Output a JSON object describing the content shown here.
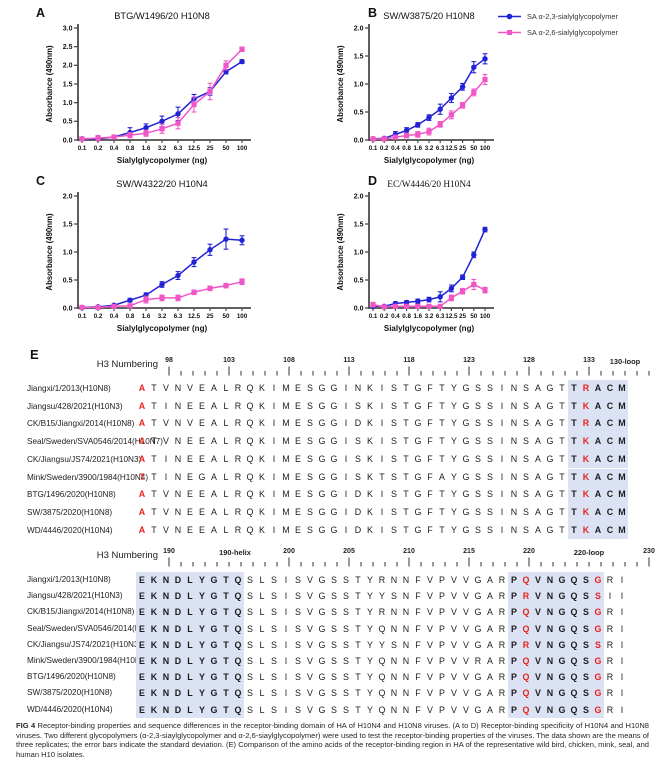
{
  "figure": {
    "colors": {
      "blue": "#2222d6",
      "pink": "#f156c6",
      "red": "#e8231d",
      "highlight": "#dbe2f4",
      "axis": "#4b4b4d",
      "text": "#111111"
    },
    "legend": {
      "items": [
        {
          "label": "SA α-2,3-sialylglycopolymer",
          "color": "#2222d6",
          "marker": "circle"
        },
        {
          "label": "SA α-2,6-sialylglycopolymer",
          "color": "#f156c6",
          "marker": "square"
        }
      ]
    }
  },
  "chart_data": [
    {
      "panel": "A",
      "type": "line",
      "title": "BTG/W1496/20 H10N8",
      "title_font": "sans",
      "xlabel": "Sialylglycopolymer (ng)",
      "ylabel": "Absorbance (490nm)",
      "categories": [
        "0.1",
        "0.2",
        "0.4",
        "0.8",
        "1.6",
        "3.2",
        "6.3",
        "12.5",
        "25",
        "50",
        "100"
      ],
      "ylim": [
        0,
        3.0
      ],
      "ytick_step": 0.5,
      "series": [
        {
          "name": "SA α-2,3-sialylglycopolymer",
          "values": [
            0.03,
            0.03,
            0.08,
            0.2,
            0.33,
            0.5,
            0.7,
            1.1,
            1.3,
            1.83,
            2.1
          ],
          "errors": [
            0.02,
            0.04,
            0.05,
            0.13,
            0.1,
            0.14,
            0.18,
            0.12,
            0.1,
            0.06,
            0.05
          ]
        },
        {
          "name": "SA α-2,6-sialylglycopolymer",
          "values": [
            0.03,
            0.05,
            0.08,
            0.13,
            0.18,
            0.3,
            0.45,
            0.95,
            1.3,
            2.0,
            2.43
          ],
          "errors": [
            0.02,
            0.07,
            0.05,
            0.07,
            0.08,
            0.12,
            0.15,
            0.2,
            0.22,
            0.12,
            0.06
          ]
        }
      ]
    },
    {
      "panel": "B",
      "type": "line",
      "title": "SW/W3875/20 H10N8",
      "title_font": "sans",
      "xlabel": "Sialylglycopolymer (ng)",
      "ylabel": "Absorbance (490nm)",
      "categories": [
        "0.1",
        "0.2",
        "0.4",
        "0.8",
        "1.6",
        "3.2",
        "6.3",
        "12.5",
        "25",
        "50",
        "100"
      ],
      "ylim": [
        0,
        2.0
      ],
      "ytick_step": 0.5,
      "series": [
        {
          "name": "SA α-2,3-sialylglycopolymer",
          "values": [
            0.02,
            0.03,
            0.1,
            0.17,
            0.27,
            0.4,
            0.55,
            0.75,
            0.95,
            1.3,
            1.45
          ],
          "errors": [
            0.01,
            0.02,
            0.05,
            0.05,
            0.04,
            0.05,
            0.09,
            0.08,
            0.06,
            0.1,
            0.09
          ]
        },
        {
          "name": "SA α-2,6-sialylglycopolymer",
          "values": [
            0.02,
            0.02,
            0.05,
            0.08,
            0.1,
            0.15,
            0.28,
            0.45,
            0.62,
            0.85,
            1.08
          ],
          "errors": [
            0.01,
            0.01,
            0.02,
            0.04,
            0.05,
            0.06,
            0.05,
            0.07,
            0.05,
            0.06,
            0.09
          ]
        }
      ]
    },
    {
      "panel": "C",
      "type": "line",
      "title": "SW/W4322/20 H10N4",
      "title_font": "sans",
      "xlabel": "Sialylglycopolymer (ng)",
      "ylabel": "Absorbance (490nm)",
      "categories": [
        "0.1",
        "0.2",
        "0.4",
        "0.8",
        "1.6",
        "3.2",
        "6.3",
        "12.5",
        "25",
        "50",
        "100"
      ],
      "ylim": [
        0,
        2.0
      ],
      "ytick_step": 0.5,
      "series": [
        {
          "name": "SA α-2,3-sialylglycopolymer",
          "values": [
            0.01,
            0.02,
            0.05,
            0.14,
            0.23,
            0.42,
            0.58,
            0.82,
            1.04,
            1.23,
            1.21
          ],
          "errors": [
            0.01,
            0.01,
            0.02,
            0.03,
            0.04,
            0.05,
            0.07,
            0.08,
            0.1,
            0.18,
            0.08
          ]
        },
        {
          "name": "SA α-2,6-sialylglycopolymer",
          "values": [
            0.01,
            0.01,
            0.03,
            0.04,
            0.15,
            0.18,
            0.18,
            0.28,
            0.35,
            0.4,
            0.47
          ],
          "errors": [
            0.01,
            0.01,
            0.01,
            0.02,
            0.06,
            0.05,
            0.05,
            0.04,
            0.04,
            0.04,
            0.05
          ]
        }
      ]
    },
    {
      "panel": "D",
      "type": "line",
      "title": "EC/W4446/20 H10N4",
      "title_font": "serif",
      "xlabel": "Sialylglycopolymer (ng)",
      "ylabel": "Absorbance (490nm)",
      "categories": [
        "0.1",
        "0.2",
        "0.4",
        "0.8",
        "1.6",
        "3.2",
        "6.3",
        "12.5",
        "25",
        "50",
        "100"
      ],
      "ylim": [
        0,
        2.0
      ],
      "ytick_step": 0.5,
      "series": [
        {
          "name": "SA α-2,3-sialylglycopolymer",
          "values": [
            0.03,
            0.03,
            0.08,
            0.1,
            0.12,
            0.15,
            0.2,
            0.35,
            0.55,
            0.95,
            1.4
          ],
          "errors": [
            0.02,
            0.02,
            0.03,
            0.03,
            0.04,
            0.04,
            0.09,
            0.06,
            0.04,
            0.05,
            0.04
          ]
        },
        {
          "name": "SA α-2,6-sialylglycopolymer",
          "values": [
            0.06,
            0.02,
            0.03,
            0.03,
            0.03,
            0.03,
            0.03,
            0.18,
            0.3,
            0.42,
            0.32
          ],
          "errors": [
            0.04,
            0.01,
            0.01,
            0.01,
            0.01,
            0.01,
            0.02,
            0.05,
            0.05,
            0.09,
            0.05
          ]
        }
      ]
    }
  ],
  "alignment": {
    "section_label": "E",
    "blocks": [
      {
        "header": "H3 Numbering",
        "ruler": {
          "labels": [
            [
              0,
              "98"
            ],
            [
              5,
              "103"
            ],
            [
              10,
              "108"
            ],
            [
              15,
              "113"
            ],
            [
              20,
              "118"
            ],
            [
              25,
              "123"
            ],
            [
              30,
              "128"
            ],
            [
              35,
              "133"
            ]
          ],
          "regions": [
            {
              "text": "130-loop",
              "center_col": 38
            }
          ]
        },
        "highlights": [
          [
            36,
            40
          ]
        ],
        "red_cols": [
          0,
          37
        ],
        "rows": [
          {
            "name": "Jiangxi/1/2013(H10N8)",
            "seq": "ATVNVEALRQKIMESGGINKISTGFTYGSSINSAGTTRACM"
          },
          {
            "name": "Jiangsu/428/2021(H10N3)",
            "seq": "ATINEEALRQKIMESGGISKISTGFTYGSSINSAGTTKACM"
          },
          {
            "name": "CK/B15/Jiangxi/2014(H10N8)",
            "seq": "ATVNVEALRQKIMESGGIDKISTGFTYGSSINSAGTTRACM"
          },
          {
            "name": "Seal/Sweden/SVA0546/2014(H10N7)",
            "seq": "ATVNEEALRQKIMESGGISKISTGFTYGSSINSAGTTKACM"
          },
          {
            "name": "CK/Jiangsu/JS74/2021(H10N3)",
            "seq": "ATINEEALRQKIMESGGISKISTGFTYGSSINSAGTTKACM"
          },
          {
            "name": "Mink/Sweden/3900/1984(H10N4)",
            "seq": "TTINEGALRQKIMESGGISKTSTGFAYGSSINSAGTTKACM"
          },
          {
            "name": "BTG/1496/2020(H10N8)",
            "seq": "ATVNEEALRQKIMESGGIDKISTGFTYGSSINSAGTTKACM"
          },
          {
            "name": "SW/3875/2020(H10N8)",
            "seq": "ATVNEEALRQKIMESGGIDKISTGFTYGSSINSAGTTKACM"
          },
          {
            "name": "WD/4446/2020(H10N4)",
            "seq": "ATVNEEALRQKIMESGGIDKISTGFTYGSSINSAGTTKACM"
          }
        ]
      },
      {
        "header": "H3 Numbering",
        "ruler": {
          "labels": [
            [
              0,
              "190"
            ],
            [
              10,
              "200"
            ],
            [
              15,
              "205"
            ],
            [
              20,
              "210"
            ],
            [
              25,
              "215"
            ],
            [
              30,
              "220"
            ],
            [
              40,
              "230"
            ]
          ],
          "regions": [
            {
              "text": "190-helix",
              "center_col": 5.5
            },
            {
              "text": "220-loop",
              "center_col": 35
            }
          ]
        },
        "highlights": [
          [
            0,
            8
          ],
          [
            31,
            38
          ]
        ],
        "red_cols": [
          32,
          38
        ],
        "rows": [
          {
            "name": "Jiangxi/1/2013(H10N8)",
            "seq": "EKNDLYGTQSLSISVGSSTYRNNFVPVVGARPQVNGQSGRI"
          },
          {
            "name": "Jiangsu/428/2021(H10N3)",
            "seq": "EKNDLYGTQSLSISVGSSTYYSNFVPVVGARPRVNGQSSII"
          },
          {
            "name": "CK/B15/Jiangxi/2014(H10N8)",
            "seq": "EKNDLYGTQSLSISVGSSTYRNNFVPVVGARPQVNGQSGRI"
          },
          {
            "name": "Seal/Sweden/SVA0546/2014(H10N7)",
            "seq": "EKNDLYGTQSLSISVGSSTYQNNFVPVVGARPQVNGQSGRI"
          },
          {
            "name": "CK/Jiangsu/JS74/2021(H10N3)",
            "seq": "EKNDLYGTQSLSISVGSSTYYSNFVPVVGARPRVNGQSSRI"
          },
          {
            "name": "Mink/Sweden/3900/1984(H10N4)",
            "seq": "EKNDLYGTQSLSISVGSSTYQNNFVPVVRARPQVNGQSGRI"
          },
          {
            "name": "BTG/1496/2020(H10N8)",
            "seq": "EKNDLYGTQSLSISVGSSTYQNNFVPVVGARPQVNGQSGRI"
          },
          {
            "name": "SW/3875/2020(H10N8)",
            "seq": "EKNDLYGTQSLSISVGSSTYQNNFVPVVGARPQVNGQSGRI"
          },
          {
            "name": "WD/4446/2020(H10N4)",
            "seq": "EKNDLYGTQSLSISVGSSTYQNNFVPVVGARPQVNGQSGRI"
          }
        ]
      }
    ]
  },
  "caption": {
    "label": "FIG 4",
    "text": "Receptor-binding properties and sequence differences in the receptor-binding domain of HA of H10N4 and H10N8 viruses. (A to D) Receptor-binding specificity of H10N4 and H10N8 viruses. Two different glycopolymers (α-2,3-siaylglycopolymer and α-2,6-siaylglycopolymer) were used to test the receptor-binding properties of the viruses. The data shown are the means of three replicates; the error bars indicate the standard deviation. (E) Comparison of the amino acids of the receptor-binding region in HA of the representative wild bird, chicken, mink, seal, and human H10 isolates."
  }
}
